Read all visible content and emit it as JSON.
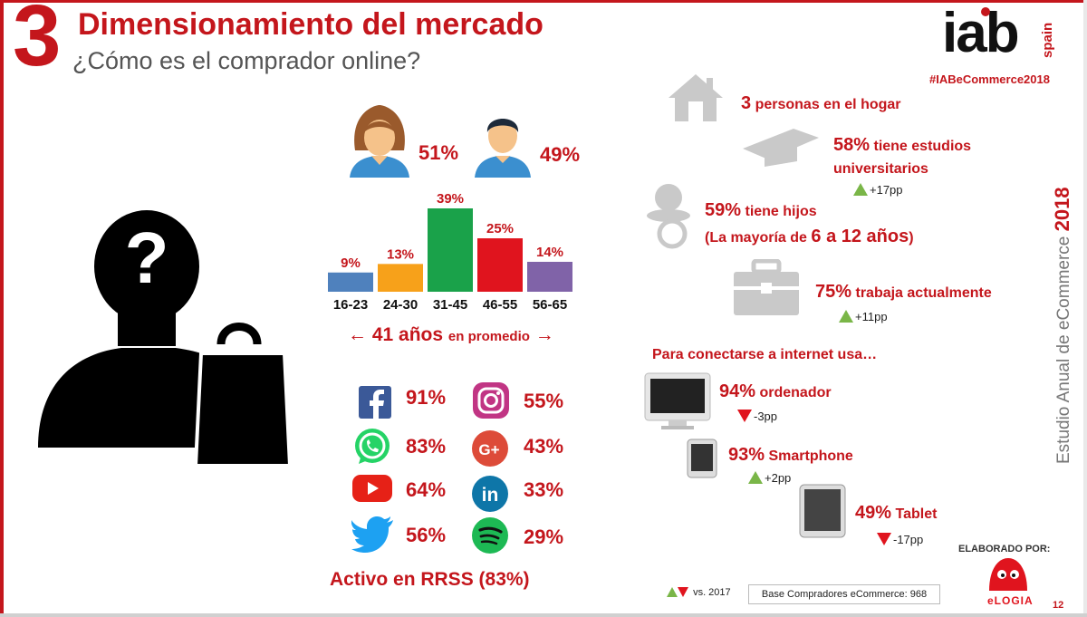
{
  "header": {
    "number": "3",
    "title": "Dimensionamiento del mercado",
    "subtitle": "¿Cómo es el comprador online?",
    "logo": "iab",
    "logo_sub": "spain",
    "hashtag": "#IABeCommerce2018"
  },
  "gender": {
    "female_pct": "51%",
    "male_pct": "49%"
  },
  "chart_data": {
    "type": "bar",
    "categories": [
      "16-23",
      "24-30",
      "31-45",
      "46-55",
      "56-65"
    ],
    "values": [
      9,
      13,
      39,
      25,
      14
    ],
    "value_labels": [
      "9%",
      "13%",
      "39%",
      "25%",
      "14%"
    ],
    "colors": [
      "#4f81bd",
      "#f7a11a",
      "#1aa24a",
      "#e0141e",
      "#8063a8"
    ],
    "ylim": [
      0,
      39
    ]
  },
  "average": {
    "age": "41 años",
    "suffix": "en promedio",
    "left_arrow": "←",
    "right_arrow": "→"
  },
  "social": [
    {
      "icon": "facebook-icon",
      "value": "91%"
    },
    {
      "icon": "instagram-icon",
      "value": "55%"
    },
    {
      "icon": "whatsapp-icon",
      "value": "83%"
    },
    {
      "icon": "google-plus-icon",
      "value": "43%"
    },
    {
      "icon": "youtube-icon",
      "value": "64%"
    },
    {
      "icon": "linkedin-icon",
      "value": "33%"
    },
    {
      "icon": "twitter-icon",
      "value": "56%"
    },
    {
      "icon": "spotify-icon",
      "value": "29%"
    }
  ],
  "social_summary": "Activo en RRSS (83%)",
  "household": {
    "num": "3",
    "text": "personas en el hogar"
  },
  "education": {
    "num": "58%",
    "text1": "tiene estudios",
    "text2": "universitarios",
    "delta": "+17pp"
  },
  "children": {
    "num": "59%",
    "text": "tiene hijos",
    "detail_pre": "(La mayoría de",
    "detail_num": "6 a 12 años",
    "detail_post": ")"
  },
  "work": {
    "num": "75%",
    "text": "trabaja actualmente",
    "delta": "+11pp"
  },
  "devices": {
    "heading": "Para conectarse a internet usa…",
    "items": [
      {
        "num": "94%",
        "label": "ordenador",
        "delta": "-3pp",
        "dir": "down"
      },
      {
        "num": "93%",
        "label": "Smartphone",
        "delta": "+2pp",
        "dir": "up"
      },
      {
        "num": "49%",
        "label": "Tablet",
        "delta": "-17pp",
        "dir": "down"
      }
    ]
  },
  "footer": {
    "vertical_title": "Estudio Anual de eCommerce",
    "vertical_year": "2018",
    "vs": "vs. 2017",
    "base": "Base Compradores eCommerce: 968",
    "elaborado": "ELABORADO POR:",
    "elogia": "eLOGIA",
    "page": "12"
  },
  "colors": {
    "accent": "#c4161c",
    "up": "#7ab648",
    "down": "#e0141e"
  }
}
